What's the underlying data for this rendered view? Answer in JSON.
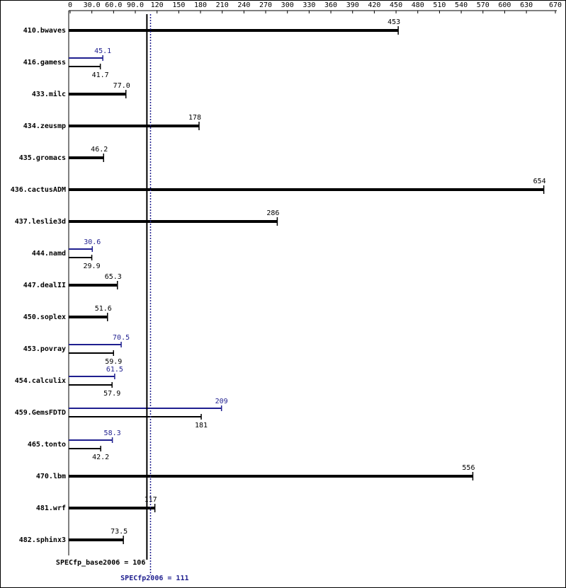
{
  "chart_data": {
    "type": "bar",
    "orientation": "horizontal",
    "categories": [
      "410.bwaves",
      "416.gamess",
      "433.milc",
      "434.zeusmp",
      "435.gromacs",
      "436.cactusADM",
      "437.leslie3d",
      "444.namd",
      "447.dealII",
      "450.soplex",
      "453.povray",
      "454.calculix",
      "459.GemsFDTD",
      "465.tonto",
      "470.lbm",
      "481.wrf",
      "482.sphinx3"
    ],
    "series": [
      {
        "name": "Base",
        "color": "#000000",
        "values": [
          453,
          41.7,
          77.0,
          178,
          46.2,
          654,
          286,
          29.9,
          65.3,
          51.6,
          59.9,
          57.9,
          181,
          42.2,
          556,
          117,
          73.5
        ],
        "value_labels": [
          "453",
          "41.7",
          "77.0",
          "178",
          "46.2",
          "654",
          "286",
          "29.9",
          "65.3",
          "51.6",
          "59.9",
          "57.9",
          "181",
          "42.2",
          "556",
          "117",
          "73.5"
        ]
      },
      {
        "name": "Peak",
        "color": "#1f1f8f",
        "values": [
          null,
          45.1,
          null,
          null,
          null,
          null,
          null,
          30.6,
          null,
          null,
          70.5,
          61.5,
          209,
          58.3,
          null,
          null,
          null
        ],
        "value_labels": [
          null,
          "45.1",
          null,
          null,
          null,
          null,
          null,
          "30.6",
          null,
          null,
          "70.5",
          "61.5",
          "209",
          "58.3",
          null,
          null,
          null
        ]
      }
    ],
    "xlim": [
      0,
      670
    ],
    "xticks": [
      0,
      {
        "value": 30,
        "label": "30.0"
      },
      {
        "value": 60,
        "label": "60.0"
      },
      {
        "value": 90,
        "label": "90.0"
      },
      120,
      150,
      180,
      210,
      240,
      270,
      300,
      330,
      360,
      390,
      420,
      450,
      480,
      510,
      540,
      570,
      600,
      630,
      670
    ],
    "reference_lines": [
      {
        "label": "SPECfp_base2006 = 106",
        "value": 106,
        "color": "#000000"
      },
      {
        "label": "SPECfp2006 = 111",
        "value": 111,
        "color": "#1f1f8f"
      }
    ]
  }
}
